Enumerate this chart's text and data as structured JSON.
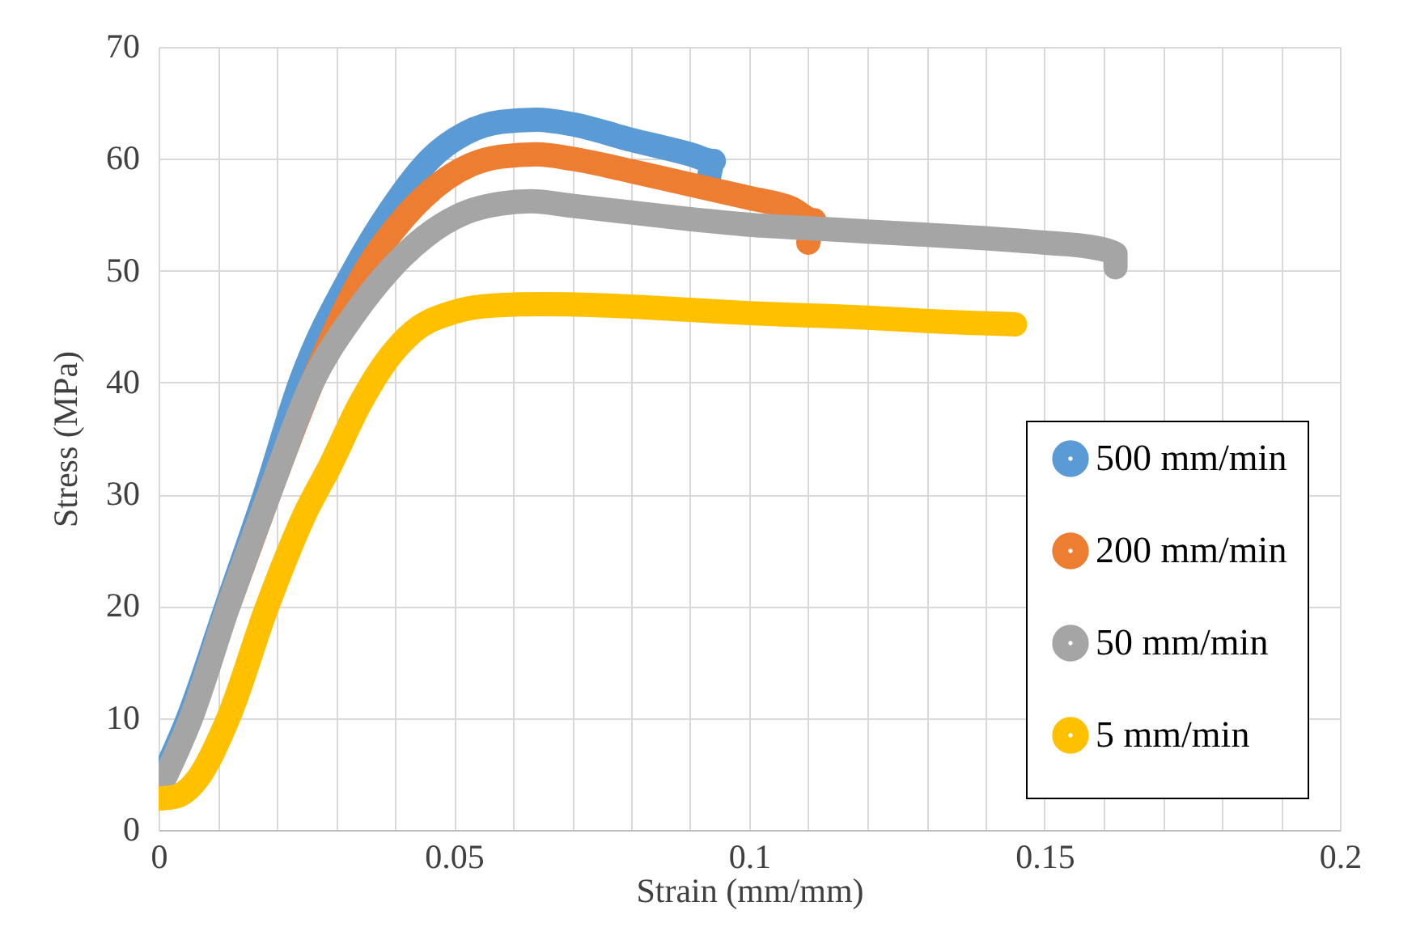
{
  "chart_data": {
    "type": "line",
    "xlabel": "Strain (mm/mm)",
    "ylabel": "Stress (MPa)",
    "xlim": [
      0,
      0.2
    ],
    "ylim": [
      0,
      70
    ],
    "xticks": [
      0,
      {
        "value": 0.01,
        "label": null
      },
      {
        "value": 0.02,
        "label": null
      },
      {
        "value": 0.03,
        "label": null
      },
      {
        "value": 0.04,
        "label": null
      },
      0.05,
      {
        "value": 0.06,
        "label": null
      },
      {
        "value": 0.07,
        "label": null
      },
      {
        "value": 0.08,
        "label": null
      },
      {
        "value": 0.09,
        "label": null
      },
      0.1,
      {
        "value": 0.11,
        "label": null
      },
      {
        "value": 0.12,
        "label": null
      },
      {
        "value": 0.13,
        "label": null
      },
      {
        "value": 0.14,
        "label": null
      },
      0.15,
      {
        "value": 0.16,
        "label": null
      },
      {
        "value": 0.17,
        "label": null
      },
      {
        "value": 0.18,
        "label": null
      },
      {
        "value": 0.19,
        "label": null
      },
      0.2
    ],
    "yticks": [
      0,
      10,
      20,
      30,
      40,
      50,
      60,
      70
    ],
    "grid": true,
    "legend": "bottom right",
    "series": [
      {
        "name": "500 mm/min",
        "color": "#5b9bd5",
        "x": [
          0,
          0.005,
          0.0115,
          0.018,
          0.024,
          0.033,
          0.04,
          0.046,
          0.052,
          0.058,
          0.064,
          0.07,
          0.08,
          0.09,
          0.094,
          0.093
        ],
        "values": [
          4,
          10,
          20,
          30,
          40,
          50,
          56,
          60,
          62.3,
          63.3,
          63.5,
          63.1,
          61.7,
          60.4,
          59.8,
          57.8
        ]
      },
      {
        "name": "200 mm/min",
        "color": "#ed7d31",
        "x": [
          0.0118,
          0.0187,
          0.026,
          0.035,
          0.042,
          0.053,
          0.058,
          0.064,
          0.07,
          0.08,
          0.09,
          0.1,
          0.107,
          0.111,
          0.11
        ],
        "values": [
          20,
          30,
          40,
          50,
          55,
          59.5,
          60.2,
          60.4,
          60,
          58.9,
          57.7,
          56.5,
          55.6,
          54.5,
          52.5
        ]
      },
      {
        "name": "50 mm/min",
        "color": "#a5a5a5",
        "x": [
          0,
          0.0055,
          0.0118,
          0.0187,
          0.026,
          0.033,
          0.039,
          0.045,
          0.052,
          0.058,
          0.063,
          0.07,
          0.08,
          0.09,
          0.1,
          0.11,
          0.12,
          0.13,
          0.14,
          0.15,
          0.158,
          0.162,
          0.162
        ],
        "values": [
          3.5,
          10,
          20,
          30,
          40,
          46,
          50,
          53,
          55.2,
          56,
          56.2,
          55.8,
          55.2,
          54.6,
          54.1,
          53.8,
          53.5,
          53.2,
          52.9,
          52.5,
          52.1,
          51.5,
          50.3
        ]
      },
      {
        "name": "5 mm/min",
        "color": "#ffc000",
        "x": [
          0,
          0.003,
          0.0065,
          0.0118,
          0.0184,
          0.025,
          0.029,
          0.034,
          0.038,
          0.043,
          0.05,
          0.057,
          0.065,
          0.075,
          0.09,
          0.1,
          0.11,
          0.12,
          0.13,
          0.145
        ],
        "values": [
          2.8,
          3,
          4.5,
          10,
          20,
          28.5,
          32.5,
          38,
          41.5,
          44.5,
          46.3,
          46.9,
          47,
          46.9,
          46.5,
          46.2,
          46,
          45.8,
          45.5,
          45.2
        ]
      }
    ]
  }
}
